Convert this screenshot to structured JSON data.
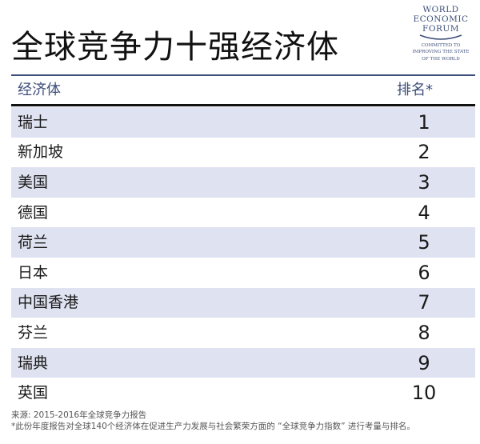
{
  "title": "全球竞争力十强经济体",
  "logo": {
    "line1": "WORLD",
    "line2": "ECONOMIC",
    "line3": "FORUM",
    "tag1": "COMMITTED TO",
    "tag2": "IMPROVING THE STATE",
    "tag3": "OF THE WORLD"
  },
  "table": {
    "header_name": "经济体",
    "header_rank": "排名*",
    "rows": [
      {
        "name": "瑞士",
        "rank": "1"
      },
      {
        "name": "新加坡",
        "rank": "2"
      },
      {
        "name": "美国",
        "rank": "3"
      },
      {
        "name": "德国",
        "rank": "4"
      },
      {
        "name": "荷兰",
        "rank": "5"
      },
      {
        "name": "日本",
        "rank": "6"
      },
      {
        "name": "中国香港",
        "rank": "7"
      },
      {
        "name": "芬兰",
        "rank": "8"
      },
      {
        "name": "瑞典",
        "rank": "9"
      },
      {
        "name": "英国",
        "rank": "10"
      }
    ]
  },
  "footer": {
    "source": "来源: 2015-2016年全球竞争力报告",
    "note": "*此份年度报告对全球140个经济体在促进生产力发展与社会繁荣方面的 “全球竞争力指数” 进行考量与排名。"
  },
  "colors": {
    "accent": "#3d4f7a",
    "row_shade": "#dfe2f0"
  }
}
